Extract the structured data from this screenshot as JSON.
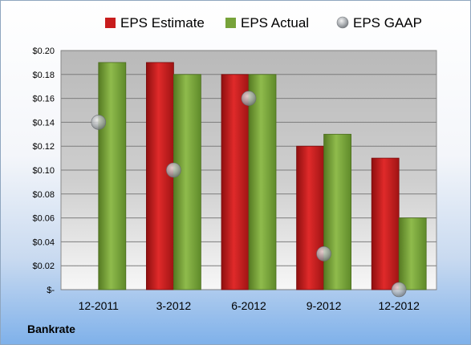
{
  "brand": "Bankrate",
  "chart_data": {
    "type": "bar",
    "categories": [
      "12-2011",
      "3-2012",
      "6-2012",
      "9-2012",
      "12-2012"
    ],
    "series": [
      {
        "name": "EPS Estimate",
        "kind": "bar",
        "color": "#c81d1d",
        "values": [
          null,
          0.19,
          0.18,
          0.12,
          0.11
        ]
      },
      {
        "name": "EPS Actual",
        "kind": "bar",
        "color": "#77a33a",
        "values": [
          0.19,
          0.18,
          0.18,
          0.13,
          0.06
        ]
      },
      {
        "name": "EPS GAAP",
        "kind": "scatter",
        "color": "#9aa0a6",
        "values": [
          0.14,
          0.1,
          0.16,
          0.03,
          0.0
        ]
      }
    ],
    "ylim": [
      0,
      0.2
    ],
    "yticks": [
      {
        "value": 0.0,
        "label": "$-"
      },
      {
        "value": 0.02,
        "label": "$0.02"
      },
      {
        "value": 0.04,
        "label": "$0.04"
      },
      {
        "value": 0.06,
        "label": "$0.06"
      },
      {
        "value": 0.08,
        "label": "$0.08"
      },
      {
        "value": 0.1,
        "label": "$0.10"
      },
      {
        "value": 0.12,
        "label": "$0.12"
      },
      {
        "value": 0.14,
        "label": "$0.14"
      },
      {
        "value": 0.16,
        "label": "$0.16"
      },
      {
        "value": 0.18,
        "label": "$0.18"
      },
      {
        "value": 0.2,
        "label": "$0.20"
      }
    ],
    "grid": true,
    "legend": "top"
  }
}
